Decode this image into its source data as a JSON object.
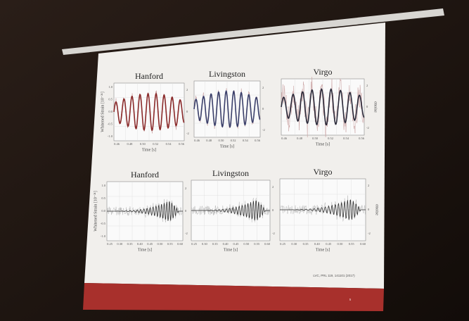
{
  "slide": {
    "rows": [
      {
        "ylabel": "Whitened Strain [10⁻²¹]",
        "y2label": "σnoise",
        "yticks": [
          "1.0",
          "0.5",
          "0.0",
          "-0.5",
          "-1.0"
        ],
        "y2ticks": [
          "2",
          "0",
          "-2"
        ],
        "panels": [
          {
            "title": "Hanford",
            "xlabel": "Time [s]",
            "xticks": [
              "0.46",
              "0.48",
              "0.50",
              "0.52",
              "0.54",
              "0.56"
            ]
          },
          {
            "title": "Livingston",
            "xlabel": "Time [s]",
            "xticks": [
              "0.46",
              "0.48",
              "0.50",
              "0.52",
              "0.54",
              "0.56"
            ]
          },
          {
            "title": "Virgo",
            "xlabel": "Time [s]",
            "xticks": [
              "0.46",
              "0.48",
              "0.50",
              "0.52",
              "0.54",
              "0.56"
            ]
          }
        ]
      },
      {
        "ylabel": "Whitened Strain [10⁻²¹]",
        "y2label": "σnoise",
        "yticks": [
          "1.0",
          "0.5",
          "0.0",
          "-0.5",
          "-1.0"
        ],
        "y2ticks": [
          "2",
          "0",
          "-2"
        ],
        "panels": [
          {
            "title": "Hanford",
            "xlabel": "Time [s]",
            "xticks": [
              "0.25",
              "0.30",
              "0.35",
              "0.40",
              "0.45",
              "0.50",
              "0.55",
              "0.60"
            ]
          },
          {
            "title": "Livingston",
            "xlabel": "Time [s]",
            "xticks": [
              "0.25",
              "0.30",
              "0.35",
              "0.40",
              "0.45",
              "0.50",
              "0.55",
              "0.60"
            ]
          },
          {
            "title": "Virgo",
            "xlabel": "Time [s]",
            "xticks": [
              "0.25",
              "0.30",
              "0.35",
              "0.40",
              "0.45",
              "0.50",
              "0.55",
              "0.60"
            ]
          }
        ]
      }
    ],
    "citation": "LVC, PRL 119, 141101 (2017)",
    "page_number": "5"
  }
}
